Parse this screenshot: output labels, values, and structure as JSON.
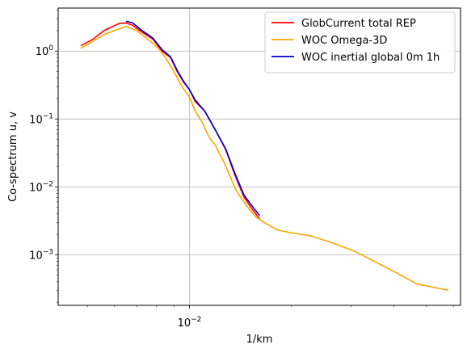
{
  "chart_data": {
    "type": "line",
    "title": "",
    "xlabel": "1/km",
    "ylabel": "Co-spectrum u, v",
    "xscale": "log",
    "yscale": "log",
    "xlim": [
      0.0041,
      0.063
    ],
    "ylim": [
      0.00018,
      4.3
    ],
    "grid": true,
    "legend_position": "top-right",
    "x_tick_labels": [
      {
        "value": 0.01,
        "base": "10",
        "exp": "−2"
      }
    ],
    "y_tick_labels": [
      {
        "value": 1,
        "base": "10",
        "exp": "0"
      },
      {
        "value": 0.1,
        "base": "10",
        "exp": "−1"
      },
      {
        "value": 0.01,
        "base": "10",
        "exp": "−2"
      },
      {
        "value": 0.001,
        "base": "10",
        "exp": "−3"
      }
    ],
    "series": [
      {
        "name": "GlobCurrent total REP",
        "color": "#ff0000",
        "x": [
          0.00478,
          0.0052,
          0.0056,
          0.0062,
          0.0065,
          0.0068,
          0.00725,
          0.0078,
          0.0083,
          0.0088,
          0.0092,
          0.0096,
          0.01,
          0.0104,
          0.0111,
          0.0119,
          0.0128,
          0.0136,
          0.0145,
          0.0154,
          0.0161
        ],
        "y": [
          1.2,
          1.5,
          2.0,
          2.55,
          2.6,
          2.4,
          1.9,
          1.5,
          1.0,
          0.8,
          0.5,
          0.35,
          0.27,
          0.18,
          0.13,
          0.07,
          0.035,
          0.015,
          0.007,
          0.0045,
          0.0034
        ]
      },
      {
        "name": "WOC Omega-3D",
        "color": "#ffa500",
        "x": [
          0.00478,
          0.0052,
          0.0056,
          0.006,
          0.0065,
          0.007,
          0.0074,
          0.0078,
          0.0081,
          0.0085,
          0.0089,
          0.0095,
          0.01,
          0.0104,
          0.0109,
          0.0113,
          0.0116,
          0.0119,
          0.0123,
          0.0127,
          0.0132,
          0.0137,
          0.0143,
          0.015,
          0.0157,
          0.0166,
          0.0174,
          0.0183,
          0.02,
          0.0228,
          0.0264,
          0.031,
          0.038,
          0.047,
          0.058
        ],
        "y": [
          1.1,
          1.4,
          1.75,
          2.0,
          2.3,
          2.0,
          1.6,
          1.3,
          1.1,
          0.8,
          0.55,
          0.3,
          0.21,
          0.13,
          0.09,
          0.06,
          0.048,
          0.042,
          0.03,
          0.022,
          0.014,
          0.009,
          0.0065,
          0.0047,
          0.0036,
          0.003,
          0.0026,
          0.0023,
          0.0021,
          0.0019,
          0.0015,
          0.0011,
          0.00065,
          0.00037,
          0.0003
        ]
      },
      {
        "name": "WOC inertial global 0m 1h",
        "color": "#0000cc",
        "x": [
          0.0065,
          0.0068,
          0.00725,
          0.0078,
          0.0083,
          0.0088,
          0.0092,
          0.0096,
          0.01,
          0.0104,
          0.0111,
          0.0119,
          0.0128,
          0.0136,
          0.0145,
          0.0154,
          0.0161
        ],
        "y": [
          2.75,
          2.6,
          2.0,
          1.55,
          1.05,
          0.82,
          0.52,
          0.36,
          0.27,
          0.19,
          0.13,
          0.07,
          0.036,
          0.016,
          0.0075,
          0.005,
          0.0038
        ]
      }
    ]
  }
}
